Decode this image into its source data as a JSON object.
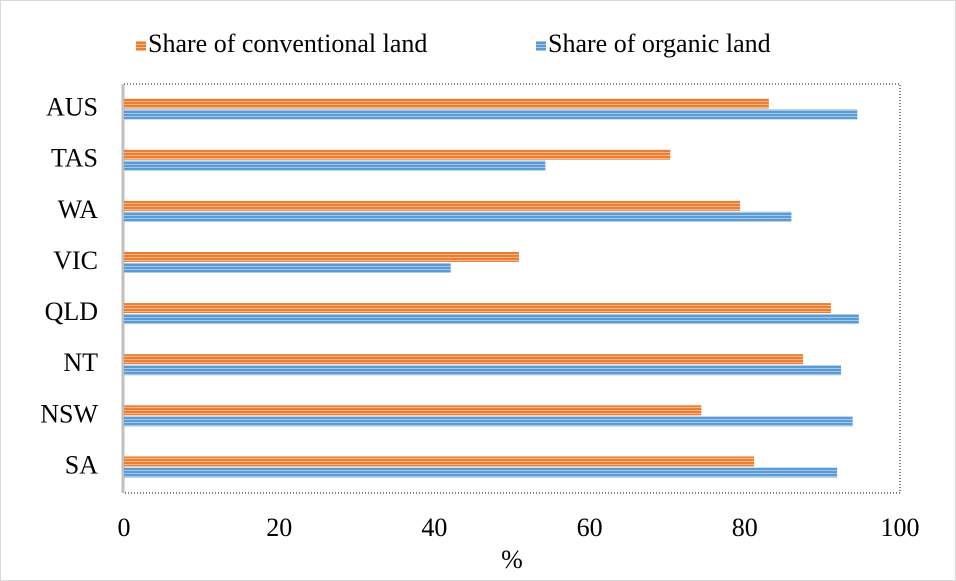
{
  "chart_data": {
    "type": "hbar",
    "x_label": "%",
    "categories": [
      "AUS",
      "TAS",
      "WA",
      "VIC",
      "QLD",
      "NT",
      "NSW",
      "SA"
    ],
    "series": [
      {
        "name": "Share of conventional land",
        "color": "#ed7d31",
        "values": [
          83.1,
          70.4,
          79.4,
          50.9,
          91.1,
          87.5,
          74.4,
          81.2
        ]
      },
      {
        "name": "Share of organic land",
        "color": "#5b9bd5",
        "values": [
          94.5,
          54.3,
          86.0,
          42.1,
          94.7,
          92.4,
          93.9,
          91.9
        ]
      }
    ],
    "xlim": [
      0,
      100
    ],
    "xticks": [
      0,
      20,
      40,
      60,
      80,
      100
    ],
    "legend": "top"
  }
}
